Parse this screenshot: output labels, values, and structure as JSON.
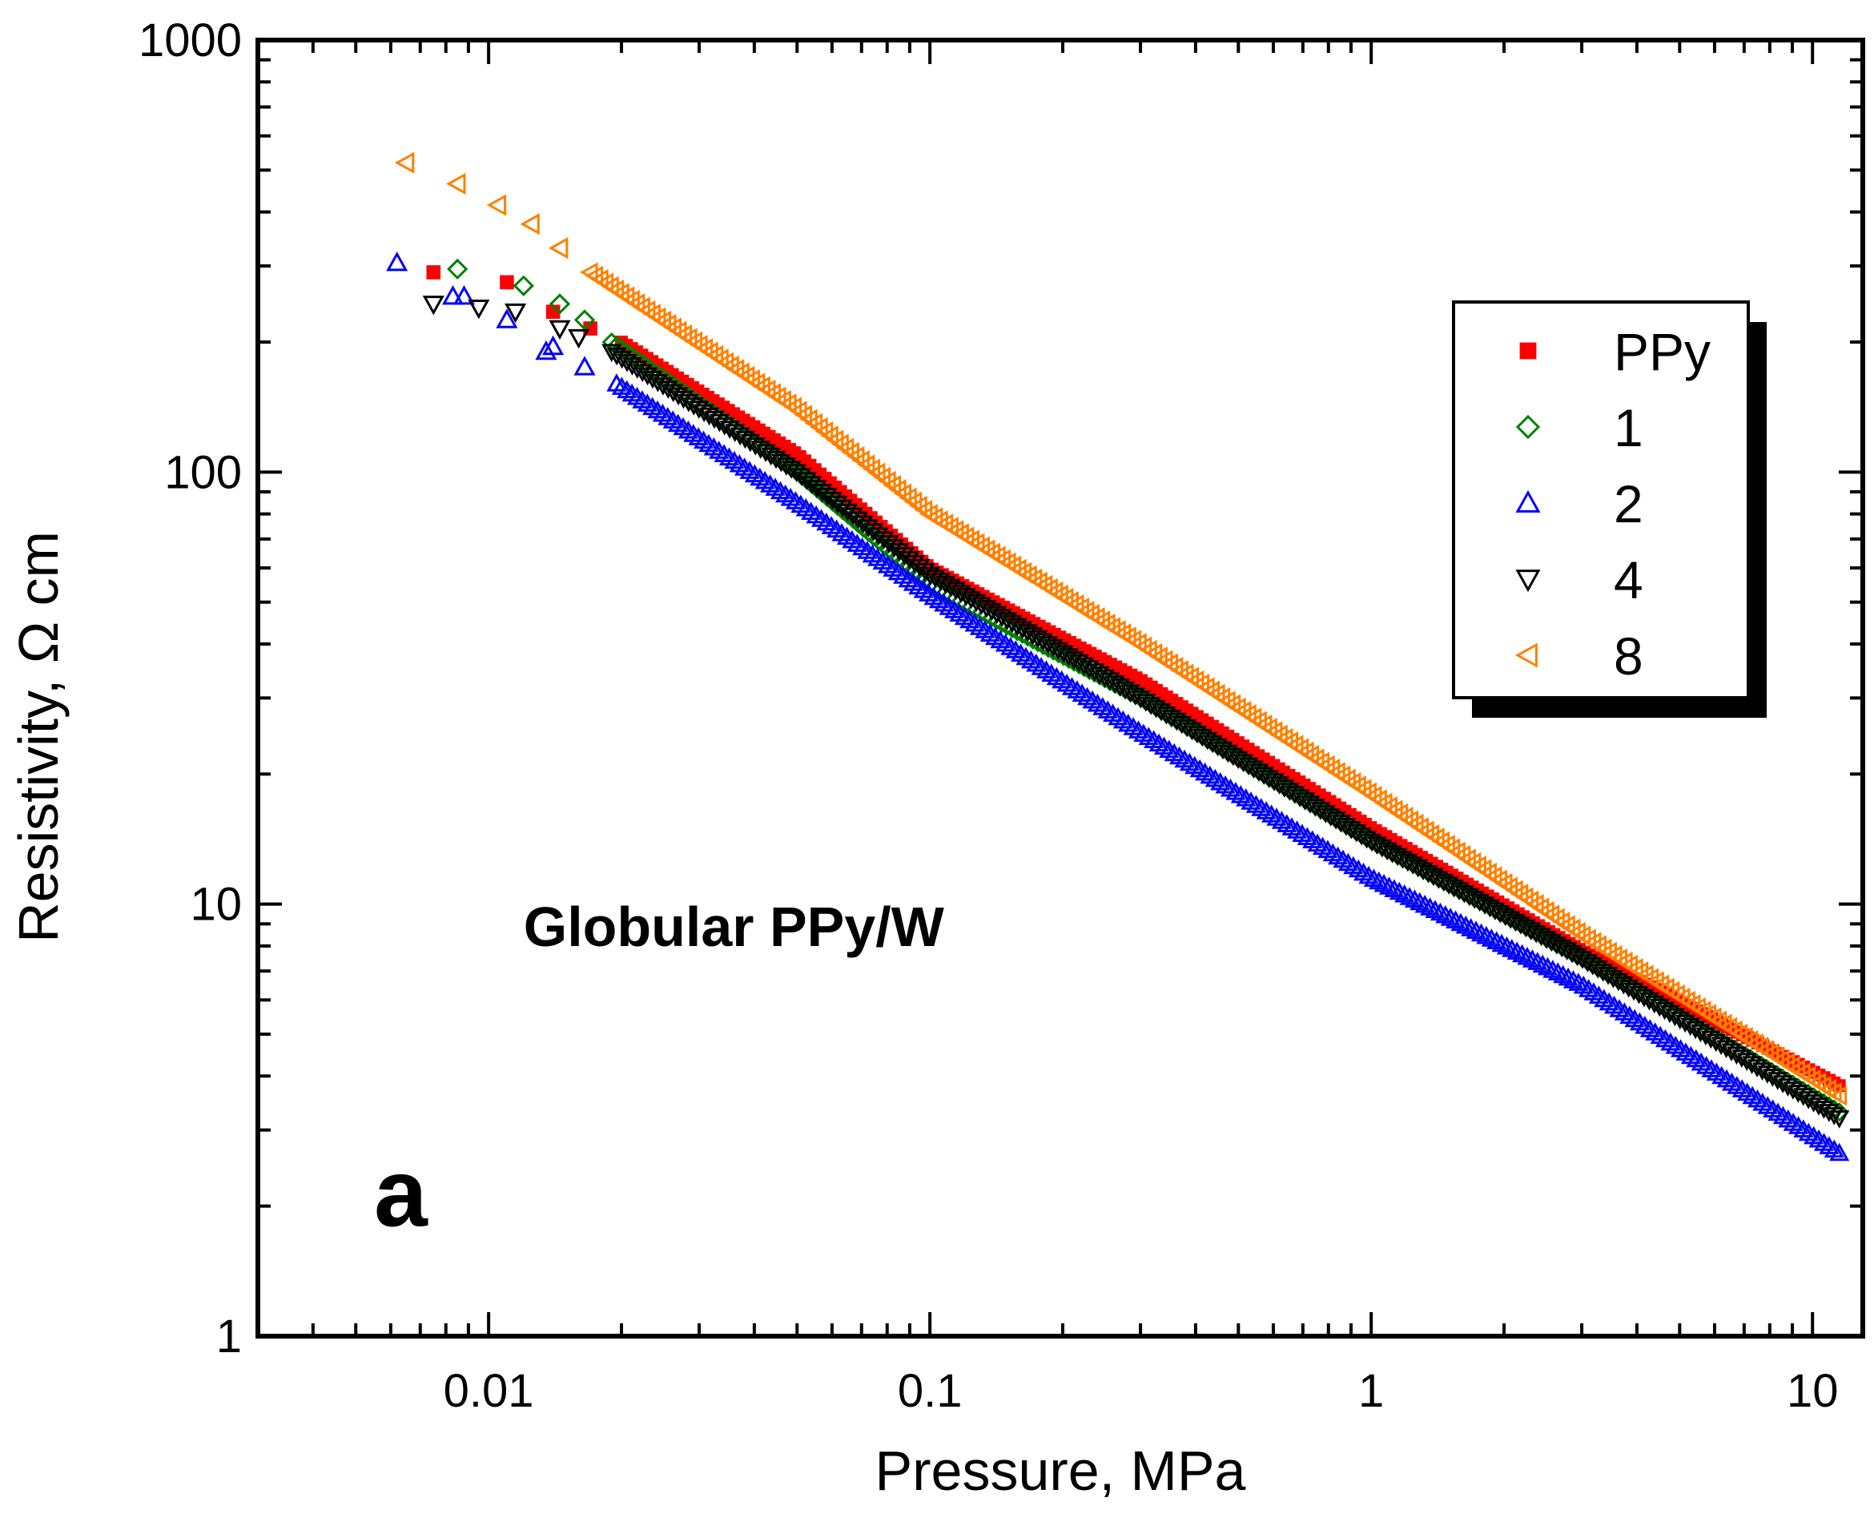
{
  "chart_data": {
    "type": "scatter",
    "xlabel": "Pressure, MPa",
    "ylabel": "Resistivity, Ω cm",
    "xscale": "log",
    "yscale": "log",
    "xlim": [
      0.003,
      13
    ],
    "ylim": [
      1,
      1000
    ],
    "xticks": [
      {
        "value": 0.01,
        "label": "0.01"
      },
      {
        "value": 0.1,
        "label": "0.1"
      },
      {
        "value": 1,
        "label": "1"
      },
      {
        "value": 10,
        "label": "10"
      }
    ],
    "yticks": [
      {
        "value": 1,
        "label": "1"
      },
      {
        "value": 10,
        "label": "10"
      },
      {
        "value": 100,
        "label": "100"
      },
      {
        "value": 1000,
        "label": "1000"
      }
    ],
    "legend_position": "top-right",
    "annotations": [
      {
        "text": "Globular PPy/W",
        "x": 0.012,
        "y": 8.0,
        "bold": true,
        "size": "medium"
      },
      {
        "text": "a",
        "x": 0.0055,
        "y": 1.8,
        "bold": true,
        "size": "large"
      }
    ],
    "series": [
      {
        "name": "PPy",
        "marker": "square-filled",
        "color": "#ff0000",
        "initial_points": [
          [
            0.0075,
            290
          ],
          [
            0.011,
            275
          ],
          [
            0.014,
            235
          ],
          [
            0.017,
            215
          ]
        ],
        "curve": [
          [
            0.02,
            200
          ],
          [
            0.05,
            110
          ],
          [
            0.1,
            60
          ],
          [
            0.3,
            33
          ],
          [
            1,
            15
          ],
          [
            3,
            7.8
          ],
          [
            11.5,
            3.8
          ]
        ]
      },
      {
        "name": "1",
        "marker": "diamond-open",
        "color": "#008000",
        "initial_points": [
          [
            0.0085,
            295
          ],
          [
            0.012,
            270
          ],
          [
            0.0145,
            245
          ],
          [
            0.0165,
            225
          ]
        ],
        "curve": [
          [
            0.019,
            200
          ],
          [
            0.05,
            100
          ],
          [
            0.1,
            55
          ],
          [
            0.3,
            30
          ],
          [
            1,
            14
          ],
          [
            3,
            7.5
          ],
          [
            11.5,
            3.3
          ]
        ]
      },
      {
        "name": "2",
        "marker": "triangle-up-open",
        "color": "#0000ff",
        "initial_points": [
          [
            0.0062,
            305
          ],
          [
            0.0083,
            255
          ],
          [
            0.0088,
            255
          ],
          [
            0.011,
            225
          ],
          [
            0.0135,
            190
          ],
          [
            0.014,
            195
          ],
          [
            0.0165,
            175
          ]
        ],
        "curve": [
          [
            0.0195,
            160
          ],
          [
            0.05,
            85
          ],
          [
            0.1,
            52
          ],
          [
            0.3,
            25
          ],
          [
            1,
            11.5
          ],
          [
            3,
            6.5
          ],
          [
            11.5,
            2.65
          ]
        ]
      },
      {
        "name": "4",
        "marker": "triangle-down-open",
        "color": "#000000",
        "initial_points": [
          [
            0.0075,
            245
          ],
          [
            0.0095,
            240
          ],
          [
            0.0115,
            235
          ],
          [
            0.0145,
            215
          ],
          [
            0.016,
            205
          ]
        ],
        "curve": [
          [
            0.019,
            190
          ],
          [
            0.05,
            100
          ],
          [
            0.1,
            58
          ],
          [
            0.3,
            30
          ],
          [
            1,
            14
          ],
          [
            3,
            7.5
          ],
          [
            11.5,
            3.2
          ]
        ]
      },
      {
        "name": "8",
        "marker": "triangle-left-open",
        "color": "#ff8000",
        "initial_points": [
          [
            0.0065,
            520
          ],
          [
            0.0085,
            465
          ],
          [
            0.0105,
            415
          ],
          [
            0.0125,
            375
          ],
          [
            0.0145,
            330
          ]
        ],
        "curve": [
          [
            0.017,
            290
          ],
          [
            0.05,
            140
          ],
          [
            0.1,
            80
          ],
          [
            0.3,
            40
          ],
          [
            1,
            18
          ],
          [
            3,
            8.5
          ],
          [
            11.5,
            3.6
          ]
        ]
      }
    ]
  }
}
